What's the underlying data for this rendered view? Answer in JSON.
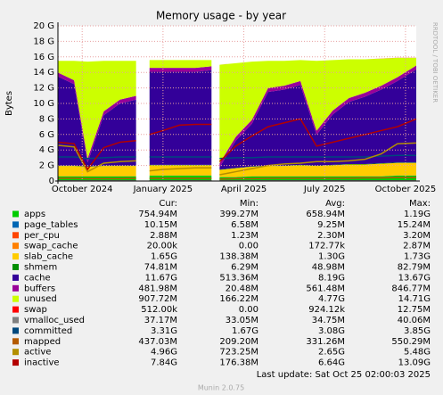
{
  "chart_data": {
    "type": "area",
    "stacked": true,
    "title": "Memory usage - by year",
    "y_label": "Bytes",
    "side_note": "RRDTOOL / TOBI OETIKER",
    "footer_update": "Last update: Sat Oct 25 02:00:03 2025",
    "footer_version": "Munin 2.0.75",
    "legend_headers": [
      "Cur:",
      "Min:",
      "Avg:",
      "Max:"
    ],
    "grid": true,
    "x": [
      -0.9,
      -0.3,
      0.2,
      0.8,
      1.4,
      2.0,
      2.15,
      2.5,
      3.0,
      3.6,
      4.2,
      4.8,
      4.95,
      5.1,
      5.7,
      6.3,
      6.9,
      7.5,
      8.1,
      8.7,
      9.3,
      9.9,
      10.5,
      11.1,
      11.7,
      12.4
    ],
    "xlim": [
      -0.9,
      12.4
    ],
    "xticks": [
      {
        "value": 0,
        "label": "October 2024"
      },
      {
        "value": 3,
        "label": "January 2025"
      },
      {
        "value": 6,
        "label": "April 2025"
      },
      {
        "value": 9,
        "label": "July 2025"
      },
      {
        "value": 12,
        "label": "October 2025"
      }
    ],
    "ylim": [
      0,
      20
    ],
    "yticks": [
      {
        "value": 0,
        "label": "0"
      },
      {
        "value": 2,
        "label": "2 G"
      },
      {
        "value": 4,
        "label": "4 G"
      },
      {
        "value": 6,
        "label": "6 G"
      },
      {
        "value": 8,
        "label": "8 G"
      },
      {
        "value": 10,
        "label": "10 G"
      },
      {
        "value": 12,
        "label": "12 G"
      },
      {
        "value": 14,
        "label": "14 G"
      },
      {
        "value": 16,
        "label": "16 G"
      },
      {
        "value": 18,
        "label": "18 G"
      },
      {
        "value": 20,
        "label": "20 G"
      }
    ],
    "series": [
      {
        "name": "apps",
        "color": "#00cc00",
        "kind": "area",
        "stats": [
          "754.94M",
          "399.27M",
          "658.94M",
          "1.19G"
        ],
        "values": [
          0.6,
          0.6,
          0.6,
          0.6,
          0.6,
          0.6,
          null,
          0.7,
          0.7,
          0.7,
          0.7,
          0.7,
          null,
          0.5,
          0.5,
          0.6,
          0.6,
          0.6,
          0.6,
          0.6,
          0.6,
          0.6,
          0.6,
          0.6,
          0.7,
          0.7
        ]
      },
      {
        "name": "page_tables",
        "color": "#0066b3",
        "kind": "area",
        "stats": [
          "10.15M",
          "6.58M",
          "9.25M",
          "15.24M"
        ],
        "values": [
          0.01,
          0.01,
          0.01,
          0.01,
          0.01,
          0.01,
          null,
          0.01,
          0.01,
          0.01,
          0.01,
          0.01,
          null,
          0.01,
          0.01,
          0.01,
          0.01,
          0.01,
          0.01,
          0.01,
          0.01,
          0.01,
          0.01,
          0.01,
          0.01,
          0.01
        ]
      },
      {
        "name": "per_cpu",
        "color": "#ff4500",
        "kind": "area",
        "stats": [
          "2.88M",
          "1.23M",
          "2.30M",
          "3.20M"
        ],
        "values": [
          0.003,
          0.003,
          0.003,
          0.003,
          0.003,
          0.003,
          null,
          0.003,
          0.003,
          0.003,
          0.003,
          0.003,
          null,
          0.003,
          0.003,
          0.003,
          0.003,
          0.003,
          0.003,
          0.003,
          0.003,
          0.003,
          0.003,
          0.003,
          0.003,
          0.003
        ]
      },
      {
        "name": "swap_cache",
        "color": "#ff8000",
        "kind": "area",
        "stats": [
          "20.00k",
          "0.00",
          "172.77k",
          "2.87M"
        ],
        "values": [
          0.02,
          0.02,
          0.02,
          0.02,
          0.02,
          0.02,
          null,
          0.02,
          0.02,
          0.02,
          0.02,
          0.02,
          null,
          0.02,
          0.02,
          0.02,
          0.02,
          0.02,
          0.02,
          0.02,
          0.02,
          0.02,
          0.02,
          0.02,
          0.02,
          0.02
        ]
      },
      {
        "name": "slab_cache",
        "color": "#ffcc00",
        "kind": "area",
        "stats": [
          "1.65G",
          "138.38M",
          "1.30G",
          "1.73G"
        ],
        "values": [
          1.3,
          1.3,
          1.2,
          1.3,
          1.3,
          1.3,
          null,
          1.3,
          1.3,
          1.3,
          1.3,
          1.3,
          null,
          0.9,
          1.1,
          1.2,
          1.3,
          1.3,
          1.4,
          1.3,
          1.4,
          1.5,
          1.5,
          1.6,
          1.6,
          1.6
        ]
      },
      {
        "name": "shmem",
        "color": "#008f00",
        "kind": "area",
        "stats": [
          "74.81M",
          "6.29M",
          "48.98M",
          "82.79M"
        ],
        "values": [
          0.05,
          0.05,
          0.05,
          0.05,
          0.05,
          0.05,
          null,
          0.05,
          0.05,
          0.05,
          0.05,
          0.05,
          null,
          0.05,
          0.05,
          0.05,
          0.05,
          0.05,
          0.05,
          0.05,
          0.05,
          0.05,
          0.05,
          0.05,
          0.05,
          0.05
        ]
      },
      {
        "name": "cache",
        "color": "#330099",
        "kind": "area",
        "stats": [
          "11.67G",
          "513.36M",
          "8.19G",
          "13.67G"
        ],
        "values": [
          11.5,
          10.5,
          0.5,
          6.5,
          8,
          8.5,
          null,
          12,
          12,
          12,
          12,
          12.2,
          null,
          0.3,
          3.5,
          5.5,
          9.5,
          9.8,
          10.3,
          4,
          6.5,
          8,
          8.7,
          9.5,
          10.5,
          12
        ]
      },
      {
        "name": "buffers",
        "color": "#990099",
        "kind": "area",
        "stats": [
          "481.98M",
          "20.48M",
          "561.48M",
          "846.77M"
        ],
        "values": [
          0.5,
          0.5,
          0.5,
          0.5,
          0.5,
          0.5,
          null,
          0.5,
          0.5,
          0.5,
          0.5,
          0.5,
          null,
          0.5,
          0.5,
          0.5,
          0.5,
          0.5,
          0.5,
          0.5,
          0.5,
          0.5,
          0.5,
          0.5,
          0.5,
          0.5
        ]
      },
      {
        "name": "unused",
        "color": "#ccff00",
        "kind": "area",
        "stats": [
          "907.72M",
          "166.22M",
          "4.77G",
          "14.71G"
        ],
        "values": [
          1.5,
          2.5,
          12.5,
          6.5,
          5,
          4.5,
          null,
          1,
          1,
          1,
          1,
          0.8,
          null,
          12.7,
          9.5,
          7.5,
          3.5,
          3.2,
          2.7,
          9,
          6.5,
          5,
          4.3,
          3.5,
          2.5,
          1
        ]
      },
      {
        "name": "swap",
        "color": "#ff0000",
        "kind": "area",
        "stats": [
          "512.00k",
          "0.00",
          "924.12k",
          "12.75M"
        ],
        "values": [
          0.001,
          0.001,
          0.001,
          0.001,
          0.001,
          0.001,
          null,
          0.001,
          0.001,
          0.001,
          0.001,
          0.001,
          null,
          0.001,
          0.001,
          0.001,
          0.001,
          0.001,
          0.001,
          0.001,
          0.001,
          0.001,
          0.001,
          0.001,
          0.001,
          0.001
        ]
      },
      {
        "name": "vmalloc_used",
        "color": "#808080",
        "kind": "line",
        "stats": [
          "37.17M",
          "33.05M",
          "34.75M",
          "40.06M"
        ],
        "values": [
          0.035,
          0.035,
          0.035,
          0.035,
          0.035,
          0.035,
          null,
          0.035,
          0.035,
          0.035,
          0.035,
          0.035,
          null,
          0.035,
          0.035,
          0.035,
          0.035,
          0.035,
          0.035,
          0.035,
          0.035,
          0.035,
          0.035,
          0.035,
          0.035,
          0.035
        ]
      },
      {
        "name": "committed",
        "color": "#00487d",
        "kind": "line",
        "stats": [
          "3.31G",
          "1.67G",
          "3.08G",
          "3.85G"
        ],
        "values": [
          3.1,
          3.1,
          2.9,
          3.0,
          3.1,
          3.1,
          null,
          3.1,
          3.1,
          3.1,
          3.1,
          3.1,
          null,
          2.9,
          3.0,
          3.0,
          3.1,
          3.1,
          3.1,
          3.1,
          3.1,
          3.1,
          3.1,
          3.2,
          3.3,
          3.3
        ]
      },
      {
        "name": "mapped",
        "color": "#b35a00",
        "kind": "line",
        "stats": [
          "437.03M",
          "209.20M",
          "331.26M",
          "550.29M"
        ],
        "values": [
          0.35,
          0.35,
          0.3,
          0.3,
          0.3,
          0.35,
          null,
          0.35,
          0.35,
          0.35,
          0.35,
          0.35,
          null,
          0.25,
          0.3,
          0.3,
          0.35,
          0.35,
          0.35,
          0.35,
          0.35,
          0.35,
          0.4,
          0.4,
          0.45,
          0.45
        ]
      },
      {
        "name": "active",
        "color": "#b38f00",
        "kind": "line",
        "stats": [
          "4.96G",
          "723.25M",
          "2.65G",
          "5.48G"
        ],
        "values": [
          4.6,
          4.4,
          1.2,
          2.3,
          2.5,
          2.6,
          null,
          1.3,
          1.5,
          1.6,
          1.7,
          1.7,
          null,
          0.8,
          1.2,
          1.6,
          2.0,
          2.2,
          2.3,
          2.5,
          2.5,
          2.6,
          2.8,
          3.5,
          4.8,
          4.9
        ]
      },
      {
        "name": "inactive",
        "color": "#b30000",
        "kind": "line",
        "stats": [
          "7.84G",
          "176.38M",
          "6.64G",
          "13.09G"
        ],
        "values": [
          5,
          4.8,
          1.5,
          4.3,
          5,
          5.2,
          null,
          6,
          6.5,
          7.2,
          7.3,
          7.3,
          null,
          2.5,
          4.5,
          5.8,
          7,
          7.5,
          8,
          4.5,
          5,
          5.5,
          6,
          6.5,
          7,
          8
        ]
      }
    ]
  }
}
